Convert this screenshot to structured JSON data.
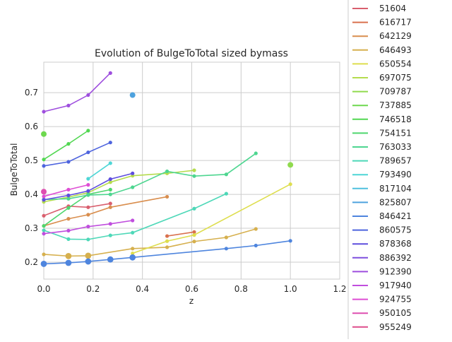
{
  "chart_data": {
    "type": "line",
    "title": "Evolution of BulgeToTotal sized bymass",
    "xlabel": "z",
    "ylabel": "BulgeToTotal",
    "xlim": [
      0,
      1.2
    ],
    "ylim": [
      0.15,
      0.79
    ],
    "x_ticks": [
      "0.0",
      "0.2",
      "0.4",
      "0.6",
      "0.8",
      "1.0",
      "1.2"
    ],
    "y_ticks": [
      "0.2",
      "0.3",
      "0.4",
      "0.5",
      "0.6",
      "0.7"
    ],
    "grid": true,
    "legend_position": "right, outside plot (cropped at top)",
    "series": [
      {
        "name": "51604",
        "color": "#d95f6e",
        "x": [
          0.0,
          0.1,
          0.18,
          0.27
        ],
        "y": [
          0.337,
          0.365,
          0.362,
          0.373
        ]
      },
      {
        "name": "616717",
        "color": "#d9714e",
        "x": [
          0.5,
          0.61
        ],
        "y": [
          0.277,
          0.289
        ]
      },
      {
        "name": "642129",
        "color": "#d98e4e",
        "x": [
          0.0,
          0.1,
          0.18,
          0.27,
          0.5
        ],
        "y": [
          0.307,
          0.328,
          0.34,
          0.362,
          0.393
        ]
      },
      {
        "name": "646493",
        "color": "#d6b04e",
        "x": [
          0.0,
          0.1,
          0.18,
          0.36,
          0.5,
          0.61,
          0.74,
          0.86
        ],
        "y": [
          0.223,
          0.218,
          0.219,
          0.24,
          0.244,
          0.261,
          0.273,
          0.298
        ]
      },
      {
        "name": "650554",
        "color": "#dede4e",
        "x": [
          0.36,
          0.5,
          0.61,
          1.0
        ],
        "y": [
          0.226,
          0.262,
          0.28,
          0.43
        ]
      },
      {
        "name": "697075",
        "color": "#b5dc4e",
        "x": [
          0.0,
          0.1,
          0.18,
          0.27,
          0.36,
          0.5,
          0.61
        ],
        "y": [
          0.378,
          0.392,
          0.405,
          0.436,
          0.455,
          0.462,
          0.471
        ]
      },
      {
        "name": "709787",
        "color": "#90da4e",
        "x": [
          1.0
        ],
        "y": [
          0.487
        ]
      },
      {
        "name": "737885",
        "color": "#6dd84e",
        "x": [
          0.0
        ],
        "y": [
          0.578
        ]
      },
      {
        "name": "746518",
        "color": "#52d752",
        "x": [
          0.0,
          0.1,
          0.18
        ],
        "y": [
          0.503,
          0.549,
          0.588
        ]
      },
      {
        "name": "754151",
        "color": "#4ed66e",
        "x": [
          0.0,
          0.1,
          0.18,
          0.27
        ],
        "y": [
          0.307,
          0.36,
          0.4,
          0.414
        ]
      },
      {
        "name": "763033",
        "color": "#4ed690",
        "x": [
          0.0,
          0.1,
          0.18,
          0.27,
          0.36,
          0.5,
          0.61,
          0.74,
          0.86
        ],
        "y": [
          0.385,
          0.387,
          0.398,
          0.4,
          0.421,
          0.468,
          0.454,
          0.459,
          0.521
        ]
      },
      {
        "name": "789657",
        "color": "#4ed8b8",
        "x": [
          0.0,
          0.1,
          0.18,
          0.27,
          0.36,
          0.61,
          0.74
        ],
        "y": [
          0.294,
          0.268,
          0.267,
          0.279,
          0.287,
          0.358,
          0.402
        ]
      },
      {
        "name": "793490",
        "color": "#4ed6d6",
        "x": [
          0.18,
          0.27
        ],
        "y": [
          0.446,
          0.492
        ]
      },
      {
        "name": "817104",
        "color": "#4ec0de",
        "x": [],
        "y": []
      },
      {
        "name": "825807",
        "color": "#4ea2de",
        "x": [
          0.36
        ],
        "y": [
          0.693
        ]
      },
      {
        "name": "846421",
        "color": "#4e85de",
        "x": [
          0.0,
          0.1,
          0.18,
          0.27,
          0.36,
          0.74,
          0.86,
          1.0
        ],
        "y": [
          0.195,
          0.198,
          0.202,
          0.208,
          0.214,
          0.24,
          0.249,
          0.263
        ]
      },
      {
        "name": "860575",
        "color": "#4e64de",
        "x": [
          0.0,
          0.1,
          0.18,
          0.27
        ],
        "y": [
          0.484,
          0.496,
          0.524,
          0.553
        ]
      },
      {
        "name": "878368",
        "color": "#5e4ede",
        "x": [
          0.0,
          0.1,
          0.18,
          0.27,
          0.36
        ],
        "y": [
          0.384,
          0.397,
          0.41,
          0.445,
          0.462
        ]
      },
      {
        "name": "886392",
        "color": "#7e4ede",
        "x": [],
        "y": []
      },
      {
        "name": "912390",
        "color": "#9e4ede",
        "x": [
          0.0,
          0.1,
          0.18,
          0.27
        ],
        "y": [
          0.644,
          0.662,
          0.693,
          0.758
        ]
      },
      {
        "name": "917940",
        "color": "#c04ede",
        "x": [
          0.0,
          0.1,
          0.18,
          0.27,
          0.36
        ],
        "y": [
          0.284,
          0.293,
          0.305,
          0.313,
          0.323
        ]
      },
      {
        "name": "924755",
        "color": "#de4ed4",
        "x": [
          0.0,
          0.1,
          0.18
        ],
        "y": [
          0.394,
          0.414,
          0.428
        ]
      },
      {
        "name": "950105",
        "color": "#de4eb0",
        "x": [
          0.0
        ],
        "y": [
          0.408
        ]
      },
      {
        "name": "955249",
        "color": "#de4e8c",
        "x": [],
        "y": []
      }
    ]
  }
}
